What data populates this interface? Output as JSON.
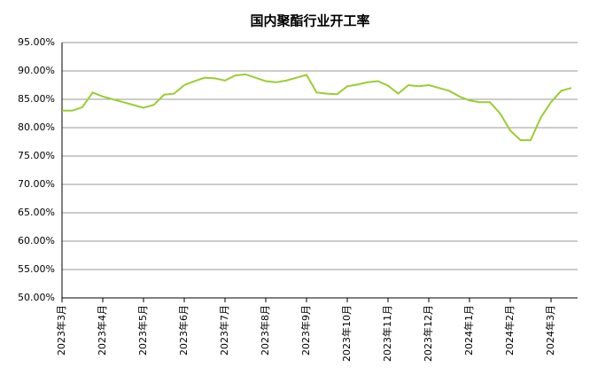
{
  "chart_data": {
    "type": "line",
    "title": "国内聚酯行业开工率",
    "categories": [
      "2023年3月",
      null,
      null,
      null,
      "2023年4月",
      null,
      null,
      null,
      "2023年5月",
      null,
      null,
      null,
      "2023年6月",
      null,
      null,
      null,
      "2023年7月",
      null,
      null,
      null,
      "2023年8月",
      null,
      null,
      null,
      "2023年9月",
      null,
      null,
      null,
      "2023年10月",
      null,
      null,
      null,
      "2023年11月",
      null,
      null,
      null,
      "2023年12月",
      null,
      null,
      null,
      "2024年1月",
      null,
      null,
      null,
      "2024年2月",
      null,
      null,
      null,
      "2024年3月",
      null,
      null
    ],
    "series": [
      {
        "color": "#9ACD32",
        "values": [
          83.0,
          83.0,
          83.6,
          86.2,
          85.5,
          85.0,
          84.5,
          84.0,
          83.5,
          84.0,
          85.8,
          86.0,
          87.5,
          88.2,
          88.8,
          88.7,
          88.3,
          89.2,
          89.4,
          88.8,
          88.2,
          88.0,
          88.3,
          88.8,
          89.3,
          86.2,
          86.0,
          85.9,
          87.3,
          87.6,
          88.0,
          88.2,
          87.4,
          86.0,
          87.5,
          87.3,
          87.5,
          87.0,
          86.5,
          85.5,
          84.8,
          84.5,
          84.5,
          82.5,
          79.5,
          77.8,
          77.8,
          81.8,
          84.5,
          86.5,
          87.0
        ]
      }
    ],
    "ylim": [
      50,
      95
    ],
    "yticks": [
      {
        "value": 50,
        "label": "50.00%"
      },
      {
        "value": 55,
        "label": "55.00%"
      },
      {
        "value": 60,
        "label": "60.00%"
      },
      {
        "value": 65,
        "label": "65.00%"
      },
      {
        "value": 70,
        "label": "70.00%"
      },
      {
        "value": 75,
        "label": "75.00%"
      },
      {
        "value": 80,
        "label": "80.00%"
      },
      {
        "value": 85,
        "label": "85.00%"
      },
      {
        "value": 90,
        "label": "90.00%"
      },
      {
        "value": 95,
        "label": "95.00%"
      }
    ],
    "grid": true
  }
}
